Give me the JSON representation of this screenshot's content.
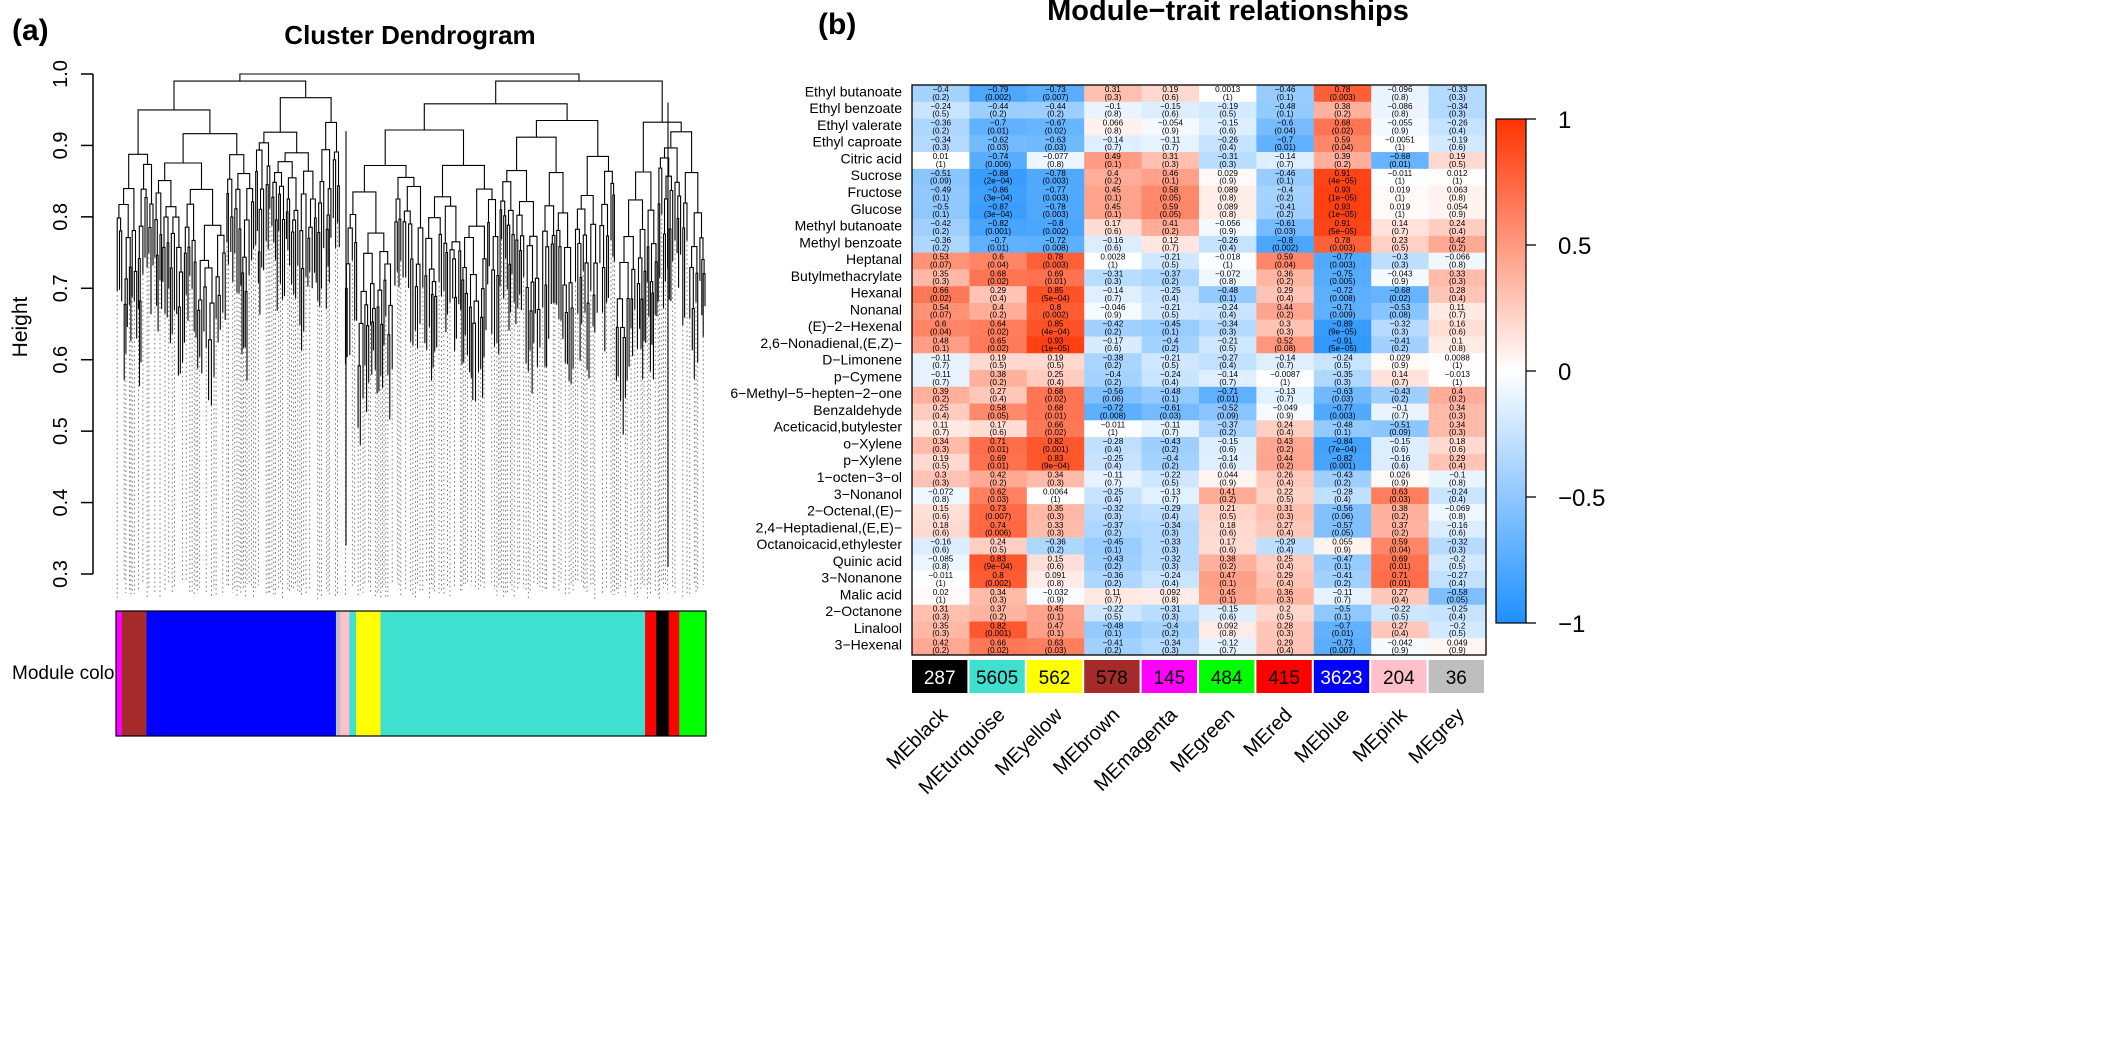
{
  "panel_a": {
    "letter": "(a)",
    "title": "Cluster Dendrogram",
    "ylabel": "Height",
    "y_ticks": [
      "1.0",
      "0.9",
      "0.8",
      "0.7",
      "0.6",
      "0.5",
      "0.4",
      "0.3"
    ],
    "module_colors_label": "Module colors",
    "color_bands": [
      {
        "color": "#ff00ff",
        "weight": 0.8
      },
      {
        "color": "#a52a2a",
        "weight": 3.3
      },
      {
        "color": "#0000ff",
        "weight": 25.5
      },
      {
        "color": "#c0c0c0",
        "weight": 0.6
      },
      {
        "color": "#ffc0cb",
        "weight": 1.2
      },
      {
        "color": "#40e0d0",
        "weight": 0.9
      },
      {
        "color": "#ffff00",
        "weight": 3.3
      },
      {
        "color": "#40e0d0",
        "weight": 35.6
      },
      {
        "color": "#ff0000",
        "weight": 1.5
      },
      {
        "color": "#000000",
        "weight": 1.7
      },
      {
        "color": "#ff0000",
        "weight": 1.4
      },
      {
        "color": "#00ff00",
        "weight": 3.6
      }
    ],
    "white_gaps": [
      0.005,
      0.978
    ]
  },
  "panel_b": {
    "letter": "(b)",
    "title": "Module−trait relationships",
    "colorbar_ticks": [
      "1",
      "0.5",
      "0",
      "−0.5",
      "−1"
    ],
    "colorbar_values": [
      1,
      0.5,
      0,
      -0.5,
      -1
    ],
    "module_colors": [
      "#000000",
      "#40e0d0",
      "#ffff00",
      "#a52a2a",
      "#ff00ff",
      "#00ff00",
      "#ff0000",
      "#0000ff",
      "#ffc0cb",
      "#bebebe"
    ],
    "module_text_colors": [
      "#ffffff",
      "#000000",
      "#000000",
      "#000000",
      "#000000",
      "#000000",
      "#000000",
      "#ffffff",
      "#000000",
      "#000000"
    ]
  },
  "chart_data": {
    "type": "heatmap",
    "title": "Module−trait relationships",
    "columns": [
      "MEblack",
      "MEturquoise",
      "MEyellow",
      "MEbrown",
      "MEmagenta",
      "MEgreen",
      "MEred",
      "MEblue",
      "MEpink",
      "MEgrey"
    ],
    "module_sizes": [
      "287",
      "5605",
      "562",
      "578",
      "145",
      "484",
      "415",
      "3623",
      "204",
      "36"
    ],
    "rows": [
      "Ethyl butanoate",
      "Ethyl benzoate",
      "Ethyl valerate",
      "Ethyl caproate",
      "Citric acid",
      "Sucrose",
      "Fructose",
      "Glucose",
      "Methyl butanoate",
      "Methyl benzoate",
      "Heptanal",
      "Butylmethacrylate",
      "Hexanal",
      "Nonanal",
      "(E)−2−Hexenal",
      "2,6−Nonadienal,(E,Z)−",
      "D−Limonene",
      "p−Cymene",
      "6−Methyl−5−hepten−2−one",
      "Benzaldehyde",
      "Aceticacid,butylester",
      "o−Xylene",
      "p−Xylene",
      "1−octen−3−ol",
      "3−Nonanol",
      "2−Octenal,(E)−",
      "2,4−Heptadienal,(E,E)−",
      "Octanoicacid,ethylester",
      "Quinic acid",
      "3−Nonanone",
      "Malic acid",
      "2−Octanone",
      "Linalool",
      "3−Hexenal"
    ],
    "correlations": [
      [
        "−0.4",
        "−0.79",
        "−0.73",
        "0.31",
        "0.19",
        "0.0013",
        "−0.46",
        "0.78",
        "−0.096",
        "−0.33"
      ],
      [
        "−0.24",
        "−0.44",
        "−0.44",
        "−0.1",
        "−0.15",
        "−0.19",
        "−0.48",
        "0.38",
        "−0.086",
        "−0.34"
      ],
      [
        "−0.36",
        "−0.7",
        "−0.67",
        "0.066",
        "−0.054",
        "−0.15",
        "−0.6",
        "0.68",
        "−0.055",
        "−0.26"
      ],
      [
        "−0.34",
        "−0.62",
        "−0.63",
        "−0.14",
        "−0.11",
        "−0.26",
        "−0.7",
        "0.59",
        "−0.0051",
        "−0.19"
      ],
      [
        "0.01",
        "−0.74",
        "−0.077",
        "0.49",
        "0.31",
        "−0.31",
        "−0.14",
        "0.39",
        "−0.68",
        "0.19"
      ],
      [
        "−0.51",
        "−0.88",
        "−0.78",
        "0.4",
        "0.46",
        "0.029",
        "−0.46",
        "0.91",
        "−0.011",
        "0.012"
      ],
      [
        "−0.49",
        "−0.86",
        "−0.77",
        "0.45",
        "0.58",
        "0.089",
        "−0.4",
        "0.93",
        "0.019",
        "0.063"
      ],
      [
        "−0.5",
        "−0.87",
        "−0.78",
        "0.45",
        "0.59",
        "0.089",
        "−0.41",
        "0.93",
        "0.019",
        "0.054"
      ],
      [
        "−0.42",
        "−0.82",
        "−0.8",
        "0.17",
        "0.41",
        "−0.056",
        "−0.61",
        "0.91",
        "0.14",
        "0.24"
      ],
      [
        "−0.36",
        "−0.7",
        "−0.72",
        "−0.16",
        "0.12",
        "−0.26",
        "−0.8",
        "0.78",
        "0.23",
        "0.42"
      ],
      [
        "0.53",
        "0.6",
        "0.78",
        "0.0028",
        "−0.21",
        "−0.018",
        "0.59",
        "−0.77",
        "−0.3",
        "−0.066"
      ],
      [
        "0.35",
        "0.68",
        "0.69",
        "−0.31",
        "−0.37",
        "−0.072",
        "0.36",
        "−0.75",
        "−0.043",
        "0.33"
      ],
      [
        "0.66",
        "0.29",
        "0.85",
        "−0.14",
        "−0.25",
        "−0.48",
        "0.29",
        "−0.72",
        "−0.68",
        "0.28"
      ],
      [
        "0.54",
        "0.4",
        "0.8",
        "−0.046",
        "−0.21",
        "−0.24",
        "0.44",
        "−0.71",
        "−0.53",
        "0.11"
      ],
      [
        "0.6",
        "0.64",
        "0.85",
        "−0.42",
        "−0.45",
        "−0.34",
        "0.3",
        "−0.89",
        "−0.32",
        "0.16"
      ],
      [
        "0.48",
        "0.65",
        "0.93",
        "−0.17",
        "−0.4",
        "−0.21",
        "0.52",
        "−0.91",
        "−0.41",
        "0.1"
      ],
      [
        "−0.11",
        "0.19",
        "0.19",
        "−0.38",
        "−0.21",
        "−0.27",
        "−0.14",
        "−0.24",
        "0.029",
        "0.0088"
      ],
      [
        "−0.11",
        "0.38",
        "0.25",
        "−0.4",
        "−0.24",
        "−0.14",
        "−0.0087",
        "−0.35",
        "0.14",
        "−0.013"
      ],
      [
        "0.39",
        "0.27",
        "0.68",
        "−0.56",
        "−0.48",
        "−0.71",
        "−0.13",
        "−0.63",
        "−0.43",
        "0.4"
      ],
      [
        "0.25",
        "0.58",
        "0.68",
        "−0.72",
        "−0.61",
        "−0.52",
        "−0.049",
        "−0.77",
        "−0.1",
        "0.34"
      ],
      [
        "0.11",
        "0.17",
        "0.66",
        "−0.011",
        "−0.11",
        "−0.37",
        "0.24",
        "−0.48",
        "−0.51",
        "0.34"
      ],
      [
        "0.34",
        "0.71",
        "0.82",
        "−0.28",
        "−0.43",
        "−0.15",
        "0.43",
        "−0.84",
        "−0.15",
        "0.18"
      ],
      [
        "0.19",
        "0.69",
        "0.83",
        "−0.25",
        "−0.4",
        "−0.14",
        "0.44",
        "−0.82",
        "−0.16",
        "0.29"
      ],
      [
        "0.3",
        "0.42",
        "0.34",
        "−0.11",
        "−0.22",
        "0.044",
        "0.26",
        "−0.43",
        "0.026",
        "−0.1"
      ],
      [
        "−0.072",
        "0.62",
        "0.0064",
        "−0.25",
        "−0.13",
        "0.41",
        "0.22",
        "−0.28",
        "0.63",
        "−0.24"
      ],
      [
        "0.15",
        "0.73",
        "0.35",
        "−0.32",
        "−0.29",
        "0.21",
        "0.31",
        "−0.56",
        "0.38",
        "−0.069"
      ],
      [
        "0.18",
        "0.74",
        "0.33",
        "−0.37",
        "−0.34",
        "0.18",
        "0.27",
        "−0.57",
        "0.37",
        "−0.16"
      ],
      [
        "−0.16",
        "0.24",
        "−0.36",
        "−0.45",
        "−0.33",
        "0.17",
        "−0.29",
        "0.055",
        "0.59",
        "−0.32"
      ],
      [
        "−0.085",
        "0.83",
        "0.15",
        "−0.43",
        "−0.32",
        "0.38",
        "0.25",
        "−0.47",
        "0.69",
        "−0.2"
      ],
      [
        "−0.011",
        "0.8",
        "0.091",
        "−0.36",
        "−0.24",
        "0.47",
        "0.29",
        "−0.41",
        "0.71",
        "−0.27"
      ],
      [
        "0.02",
        "0.34",
        "−0.032",
        "0.11",
        "0.092",
        "0.45",
        "0.36",
        "−0.11",
        "0.27",
        "−0.58"
      ],
      [
        "0.31",
        "0.37",
        "0.45",
        "−0.22",
        "−0.31",
        "−0.15",
        "0.2",
        "−0.5",
        "−0.22",
        "−0.25"
      ],
      [
        "0.35",
        "0.82",
        "0.47",
        "−0.48",
        "−0.4",
        "0.092",
        "0.28",
        "−0.7",
        "0.27",
        "−0.2"
      ],
      [
        "0.42",
        "0.66",
        "0.63",
        "−0.41",
        "−0.34",
        "−0.12",
        "0.29",
        "−0.73",
        "−0.042",
        "0.049"
      ]
    ],
    "pvalues": [
      [
        "(0.2)",
        "(0.002)",
        "(0.007)",
        "(0.3)",
        "(0.6)",
        "(1)",
        "(0.1)",
        "(0.003)",
        "(0.8)",
        "(0.3)"
      ],
      [
        "(0.5)",
        "(0.2)",
        "(0.2)",
        "(0.8)",
        "(0.6)",
        "(0.5)",
        "(0.1)",
        "(0.2)",
        "(0.8)",
        "(0.3)"
      ],
      [
        "(0.2)",
        "(0.01)",
        "(0.02)",
        "(0.8)",
        "(0.9)",
        "(0.6)",
        "(0.04)",
        "(0.02)",
        "(0.9)",
        "(0.4)"
      ],
      [
        "(0.3)",
        "(0.03)",
        "(0.03)",
        "(0.7)",
        "(0.7)",
        "(0.4)",
        "(0.01)",
        "(0.04)",
        "(1)",
        "(0.6)"
      ],
      [
        "(1)",
        "(0.006)",
        "(0.8)",
        "(0.1)",
        "(0.3)",
        "(0.3)",
        "(0.7)",
        "(0.2)",
        "(0.01)",
        "(0.5)"
      ],
      [
        "(0.09)",
        "(2e−04)",
        "(0.003)",
        "(0.2)",
        "(0.1)",
        "(0.9)",
        "(0.1)",
        "(4e−05)",
        "(1)",
        "(1)"
      ],
      [
        "(0.1)",
        "(3e−04)",
        "(0.003)",
        "(0.1)",
        "(0.05)",
        "(0.8)",
        "(0.2)",
        "(1e−05)",
        "(1)",
        "(0.8)"
      ],
      [
        "(0.1)",
        "(3e−04)",
        "(0.003)",
        "(0.1)",
        "(0.05)",
        "(0.8)",
        "(0.2)",
        "(1e−05)",
        "(1)",
        "(0.9)"
      ],
      [
        "(0.2)",
        "(0.001)",
        "(0.002)",
        "(0.6)",
        "(0.2)",
        "(0.9)",
        "(0.03)",
        "(5e−05)",
        "(0.7)",
        "(0.4)"
      ],
      [
        "(0.2)",
        "(0.01)",
        "(0.008)",
        "(0.6)",
        "(0.7)",
        "(0.4)",
        "(0.002)",
        "(0.003)",
        "(0.5)",
        "(0.2)"
      ],
      [
        "(0.07)",
        "(0.04)",
        "(0.003)",
        "(1)",
        "(0.5)",
        "(1)",
        "(0.04)",
        "(0.003)",
        "(0.3)",
        "(0.8)"
      ],
      [
        "(0.3)",
        "(0.02)",
        "(0.01)",
        "(0.3)",
        "(0.2)",
        "(0.8)",
        "(0.2)",
        "(0.005)",
        "(0.9)",
        "(0.3)"
      ],
      [
        "(0.02)",
        "(0.4)",
        "(5e−04)",
        "(0.7)",
        "(0.4)",
        "(0.1)",
        "(0.4)",
        "(0.008)",
        "(0.02)",
        "(0.4)"
      ],
      [
        "(0.07)",
        "(0.2)",
        "(0.002)",
        "(0.9)",
        "(0.5)",
        "(0.4)",
        "(0.2)",
        "(0.009)",
        "(0.08)",
        "(0.7)"
      ],
      [
        "(0.04)",
        "(0.02)",
        "(4e−04)",
        "(0.2)",
        "(0.1)",
        "(0.3)",
        "(0.3)",
        "(9e−05)",
        "(0.3)",
        "(0.6)"
      ],
      [
        "(0.1)",
        "(0.02)",
        "(1e−05)",
        "(0.6)",
        "(0.2)",
        "(0.5)",
        "(0.08)",
        "(5e−05)",
        "(0.2)",
        "(0.8)"
      ],
      [
        "(0.7)",
        "(0.5)",
        "(0.5)",
        "(0.2)",
        "(0.5)",
        "(0.4)",
        "(0.7)",
        "(0.5)",
        "(0.9)",
        "(1)"
      ],
      [
        "(0.7)",
        "(0.2)",
        "(0.4)",
        "(0.2)",
        "(0.4)",
        "(0.7)",
        "(1)",
        "(0.3)",
        "(0.7)",
        "(1)"
      ],
      [
        "(0.2)",
        "(0.4)",
        "(0.02)",
        "(0.06)",
        "(0.1)",
        "(0.01)",
        "(0.7)",
        "(0.03)",
        "(0.2)",
        "(0.2)"
      ],
      [
        "(0.4)",
        "(0.05)",
        "(0.01)",
        "(0.008)",
        "(0.03)",
        "(0.09)",
        "(0.9)",
        "(0.003)",
        "(0.7)",
        "(0.3)"
      ],
      [
        "(0.7)",
        "(0.6)",
        "(0.02)",
        "(1)",
        "(0.7)",
        "(0.2)",
        "(0.4)",
        "(0.1)",
        "(0.09)",
        "(0.3)"
      ],
      [
        "(0.3)",
        "(0.01)",
        "(0.001)",
        "(0.4)",
        "(0.2)",
        "(0.6)",
        "(0.2)",
        "(7e−04)",
        "(0.6)",
        "(0.6)"
      ],
      [
        "(0.5)",
        "(0.01)",
        "(9e−04)",
        "(0.4)",
        "(0.2)",
        "(0.6)",
        "(0.2)",
        "(0.001)",
        "(0.6)",
        "(0.4)"
      ],
      [
        "(0.3)",
        "(0.2)",
        "(0.3)",
        "(0.7)",
        "(0.5)",
        "(0.9)",
        "(0.4)",
        "(0.2)",
        "(0.9)",
        "(0.8)"
      ],
      [
        "(0.8)",
        "(0.03)",
        "(1)",
        "(0.4)",
        "(0.7)",
        "(0.2)",
        "(0.5)",
        "(0.4)",
        "(0.03)",
        "(0.4)"
      ],
      [
        "(0.6)",
        "(0.007)",
        "(0.3)",
        "(0.3)",
        "(0.4)",
        "(0.5)",
        "(0.3)",
        "(0.06)",
        "(0.2)",
        "(0.8)"
      ],
      [
        "(0.6)",
        "(0.006)",
        "(0.3)",
        "(0.2)",
        "(0.3)",
        "(0.6)",
        "(0.4)",
        "(0.05)",
        "(0.2)",
        "(0.6)"
      ],
      [
        "(0.6)",
        "(0.5)",
        "(0.2)",
        "(0.1)",
        "(0.3)",
        "(0.6)",
        "(0.4)",
        "(0.9)",
        "(0.04)",
        "(0.3)"
      ],
      [
        "(0.8)",
        "(9e−04)",
        "(0.6)",
        "(0.2)",
        "(0.3)",
        "(0.2)",
        "(0.4)",
        "(0.1)",
        "(0.01)",
        "(0.5)"
      ],
      [
        "(1)",
        "(0.002)",
        "(0.8)",
        "(0.2)",
        "(0.4)",
        "(0.1)",
        "(0.4)",
        "(0.2)",
        "(0.01)",
        "(0.4)"
      ],
      [
        "(1)",
        "(0.3)",
        "(0.9)",
        "(0.7)",
        "(0.8)",
        "(0.1)",
        "(0.3)",
        "(0.7)",
        "(0.4)",
        "(0.05)"
      ],
      [
        "(0.3)",
        "(0.2)",
        "(0.1)",
        "(0.5)",
        "(0.3)",
        "(0.6)",
        "(0.5)",
        "(0.1)",
        "(0.5)",
        "(0.4)"
      ],
      [
        "(0.3)",
        "(0.001)",
        "(0.1)",
        "(0.1)",
        "(0.2)",
        "(0.8)",
        "(0.3)",
        "(0.01)",
        "(0.4)",
        "(0.5)"
      ],
      [
        "(0.2)",
        "(0.02)",
        "(0.03)",
        "(0.2)",
        "(0.3)",
        "(0.7)",
        "(0.4)",
        "(0.007)",
        "(0.9)",
        "(0.9)"
      ]
    ],
    "color_scale": {
      "min": -1,
      "max": 1,
      "low": "#1e90ff",
      "mid": "#ffffff",
      "high": "#ff3300"
    },
    "ylim_colorbar": [
      -1,
      1
    ]
  }
}
